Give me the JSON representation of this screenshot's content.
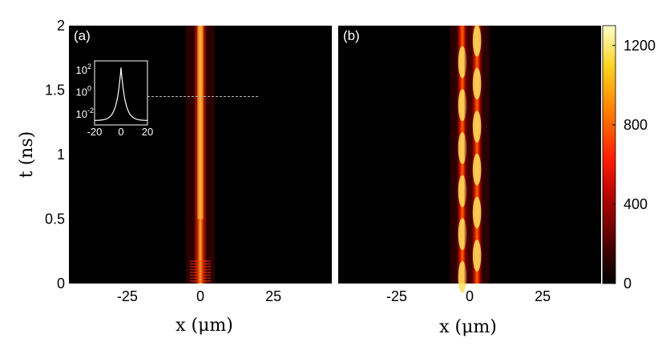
{
  "chart_data": [
    {
      "type": "heatmap",
      "panel_label": "(a)",
      "xlabel": "x (μm)",
      "ylabel": "t (ns)",
      "xlim": [
        -45,
        45
      ],
      "ylim": [
        0,
        2
      ],
      "xticks": [
        -25,
        0,
        25
      ],
      "yticks": [
        0,
        0.5,
        1,
        1.5,
        2
      ],
      "beams": [
        {
          "x": 0,
          "width": 1.4,
          "intensity": 600
        }
      ],
      "dashed_line": {
        "t": 1.45,
        "x_end": 20
      },
      "inset": {
        "type": "line",
        "scale": "log",
        "xticks": [
          -20,
          0,
          20
        ],
        "yticks": [
          "10",
          "10",
          "10"
        ],
        "ytick_exponents": [
          "2",
          "0",
          "-2"
        ],
        "profile": {
          "x0": 0,
          "peak_exp": 2.2,
          "floor_exp": -2.6
        }
      }
    },
    {
      "type": "heatmap",
      "panel_label": "(b)",
      "xlabel": "x (μm)",
      "xlim": [
        -45,
        45
      ],
      "ylim": [
        0,
        2
      ],
      "xticks": [
        -25,
        0,
        25
      ],
      "beams": [
        {
          "x": -2.5,
          "width": 1.2,
          "intensity": 700
        },
        {
          "x": 2.5,
          "width": 1.2,
          "intensity": 700
        }
      ],
      "colorbar": {
        "ticks": [
          0,
          400,
          800,
          1200
        ],
        "range": [
          0,
          1300
        ],
        "colors": [
          "#000000",
          "#5a0000",
          "#b40000",
          "#ff2000",
          "#ff8000",
          "#ffd020",
          "#ffffc0"
        ]
      }
    }
  ]
}
